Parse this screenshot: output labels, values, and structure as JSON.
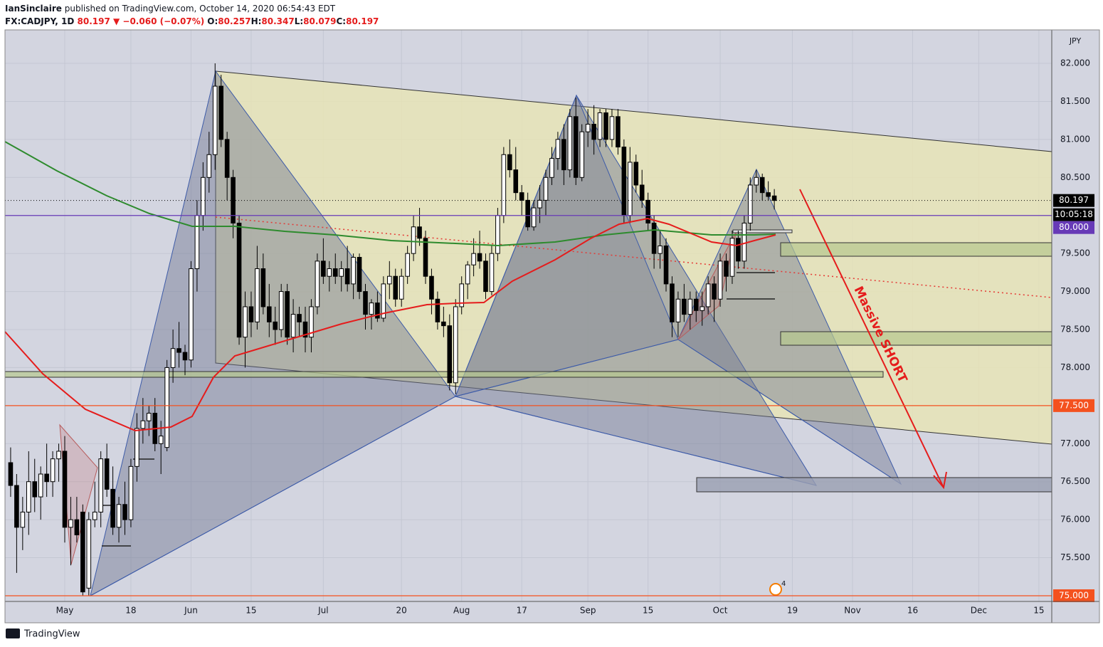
{
  "chart_data": {
    "type": "candlestick",
    "publisher": "IanSinclaire",
    "published_line": "published on TradingView.com, October 14, 2020 06:54:43 EDT",
    "symbol": "FX:CADJPY, 1D",
    "last": "80.197",
    "change": "▼ −0.060 (−0.07%)",
    "ohlc_labels": [
      {
        "key": "O:",
        "value": "80.257"
      },
      {
        "key": "H:",
        "value": "80.347"
      },
      {
        "key": "L:",
        "value": "80.079"
      },
      {
        "key": "C:",
        "value": "80.197"
      }
    ],
    "currency": "JPY",
    "annotation": "Massive SHORT",
    "marker_count": "4",
    "footer": "TradingView",
    "xlim": [
      -9.94,
      164.14
    ],
    "ylim": [
      74.925,
      82.44
    ],
    "xticks": [
      {
        "value": 0,
        "label": "May"
      },
      {
        "value": 11,
        "label": "18"
      },
      {
        "value": 21,
        "label": "Jun"
      },
      {
        "value": 31,
        "label": "15"
      },
      {
        "value": 43,
        "label": "Jul"
      },
      {
        "value": 56,
        "label": "20"
      },
      {
        "value": 66,
        "label": "Aug"
      },
      {
        "value": 76,
        "label": "17"
      },
      {
        "value": 87,
        "label": "Sep"
      },
      {
        "value": 97,
        "label": "15"
      },
      {
        "value": 109,
        "label": "Oct"
      },
      {
        "value": 121,
        "label": "19"
      },
      {
        "value": 131,
        "label": "Nov"
      },
      {
        "value": 141,
        "label": "16"
      },
      {
        "value": 152,
        "label": "Dec"
      },
      {
        "value": 162,
        "label": "15"
      }
    ],
    "yticks": [
      {
        "value": 75.5,
        "label": "75.500"
      },
      {
        "value": 76,
        "label": "76.000"
      },
      {
        "value": 76.5,
        "label": "76.500"
      },
      {
        "value": 77,
        "label": "77.000"
      },
      {
        "value": 78,
        "label": "78.000"
      },
      {
        "value": 78.5,
        "label": "78.500"
      },
      {
        "value": 79,
        "label": "79.000"
      },
      {
        "value": 79.5,
        "label": "79.500"
      },
      {
        "value": 80.5,
        "label": "80.500"
      },
      {
        "value": 81,
        "label": "81.000"
      },
      {
        "value": 81.5,
        "label": "81.500"
      },
      {
        "value": 82,
        "label": "82.000"
      }
    ],
    "grid": true,
    "up_color": "#ffffff",
    "down_color": "#000000",
    "last_price": {
      "value": 80.197,
      "label": "80.197"
    },
    "countdown": "10:05:18",
    "levels": [
      {
        "value": 80,
        "label": "80.000",
        "color": "#673ab7"
      },
      {
        "value": 77.5,
        "label": "77.500",
        "color": "#f4511e"
      },
      {
        "value": 75,
        "label": "75.000",
        "color": "#f4511e"
      }
    ],
    "x": [
      -9,
      -8,
      -7,
      -6,
      -5,
      -4,
      -3,
      -2,
      -1,
      0,
      1,
      2,
      3,
      4,
      5,
      6,
      7,
      8,
      9,
      10,
      11,
      12,
      13,
      14,
      15,
      16,
      17,
      18,
      19,
      20,
      21,
      22,
      23,
      24,
      25,
      26,
      27,
      28,
      29,
      30,
      31,
      32,
      33,
      34,
      35,
      36,
      37,
      38,
      39,
      40,
      41,
      42,
      43,
      44,
      45,
      46,
      47,
      48,
      49,
      50,
      51,
      52,
      53,
      54,
      55,
      56,
      57,
      58,
      59,
      60,
      61,
      62,
      63,
      64,
      65,
      66,
      67,
      68,
      69,
      70,
      71,
      72,
      73,
      74,
      75,
      76,
      77,
      78,
      79,
      80,
      81,
      82,
      83,
      84,
      85,
      86,
      87,
      88,
      89,
      90,
      91,
      92,
      93,
      94,
      95,
      96,
      97,
      98,
      99,
      100,
      101,
      102,
      103,
      104,
      105,
      106,
      107,
      108,
      109,
      110,
      111,
      112,
      113,
      114,
      115,
      116,
      117,
      118
    ],
    "open": [
      76.75,
      76.45,
      75.9,
      76.1,
      76.5,
      76.3,
      76.6,
      76.5,
      76.8,
      76.9,
      75.9,
      76.0,
      76.1,
      75.1,
      76.0,
      76.1,
      76.8,
      76.4,
      75.9,
      76.2,
      76.0,
      76.7,
      77.2,
      77.3,
      77.4,
      77.0,
      76.95,
      78.0,
      78.25,
      78.2,
      78.1,
      79.3,
      80.0,
      80.5,
      80.8,
      81.7,
      81.0,
      80.5,
      79.9,
      78.4,
      78.8,
      78.6,
      79.3,
      78.8,
      78.6,
      78.5,
      79.0,
      78.4,
      78.7,
      78.6,
      78.4,
      78.8,
      79.4,
      79.2,
      79.3,
      79.2,
      79.3,
      79.1,
      79.45,
      79.0,
      78.7,
      78.85,
      78.65,
      79.1,
      79.2,
      78.9,
      79.2,
      79.5,
      79.85,
      79.7,
      79.2,
      78.9,
      78.6,
      78.55,
      77.8,
      78.8,
      79.1,
      79.35,
      79.5,
      79.4,
      79.0,
      79.5,
      80.0,
      80.8,
      80.6,
      80.3,
      80.2,
      79.85,
      80.1,
      80.2,
      80.5,
      80.75,
      81.0,
      80.6,
      81.3,
      80.5,
      81.1,
      81.2,
      81.0,
      81.35,
      81.0,
      81.3,
      80.9,
      80.0,
      80.7,
      80.4,
      80.2,
      79.9,
      79.5,
      79.6,
      79.1,
      78.6,
      78.9,
      78.7,
      78.9,
      78.75,
      78.8,
      79.1,
      78.9,
      79.4,
      79.2,
      79.7,
      79.4,
      79.9,
      80.4,
      80.5,
      80.3,
      80.257
    ],
    "high": [
      76.95,
      76.6,
      76.3,
      76.9,
      76.8,
      76.7,
      77.0,
      76.9,
      77.0,
      77.1,
      76.3,
      76.3,
      76.2,
      76.1,
      76.5,
      76.9,
      77.0,
      76.7,
      76.3,
      76.5,
      76.8,
      77.4,
      77.6,
      77.5,
      77.6,
      77.3,
      78.1,
      78.5,
      78.6,
      78.3,
      79.4,
      80.2,
      80.7,
      81.1,
      82.0,
      81.85,
      81.1,
      80.6,
      80.0,
      79.0,
      79.0,
      79.6,
      79.5,
      79.1,
      78.8,
      79.1,
      79.1,
      78.9,
      78.8,
      78.8,
      78.9,
      79.5,
      79.7,
      79.4,
      79.5,
      79.4,
      79.6,
      79.5,
      79.5,
      79.1,
      78.9,
      79.0,
      79.2,
      79.4,
      79.3,
      79.3,
      79.6,
      80.0,
      80.1,
      79.8,
      79.3,
      79.0,
      78.8,
      78.7,
      78.9,
      79.2,
      79.4,
      79.7,
      79.8,
      79.5,
      79.6,
      80.1,
      80.9,
      81.0,
      80.9,
      80.4,
      80.3,
      80.2,
      80.4,
      80.6,
      80.9,
      81.1,
      81.2,
      81.4,
      81.55,
      81.2,
      81.4,
      81.45,
      81.4,
      81.4,
      81.4,
      81.4,
      81.0,
      80.9,
      80.8,
      80.6,
      80.3,
      80.0,
      79.8,
      79.7,
      79.2,
      79.0,
      79.1,
      79.0,
      79.0,
      79.0,
      79.2,
      79.2,
      79.5,
      79.5,
      79.8,
      79.8,
      80.0,
      80.5,
      80.6,
      80.55,
      80.45,
      80.347
    ],
    "low": [
      76.3,
      75.3,
      75.6,
      75.8,
      76.1,
      76.0,
      76.3,
      76.3,
      76.5,
      75.7,
      75.4,
      75.7,
      75.0,
      75.0,
      75.9,
      75.9,
      76.3,
      75.8,
      75.7,
      75.8,
      75.9,
      76.5,
      77.0,
      77.1,
      76.9,
      76.6,
      76.9,
      77.8,
      78.0,
      77.9,
      78.0,
      79.0,
      79.8,
      80.3,
      80.6,
      80.9,
      80.2,
      79.7,
      78.3,
      78.0,
      78.4,
      78.5,
      78.7,
      78.4,
      78.3,
      78.4,
      78.3,
      78.2,
      78.4,
      78.2,
      78.2,
      78.7,
      79.1,
      79.0,
      79.1,
      79.0,
      79.0,
      78.9,
      78.9,
      78.5,
      78.5,
      78.6,
      78.6,
      78.9,
      78.8,
      78.8,
      79.1,
      79.4,
      79.6,
      79.1,
      78.7,
      78.5,
      78.4,
      77.7,
      77.65,
      78.7,
      78.9,
      79.2,
      79.3,
      78.9,
      78.95,
      79.4,
      79.9,
      80.5,
      80.2,
      80.0,
      79.8,
      79.8,
      79.9,
      80.0,
      80.4,
      80.6,
      80.4,
      80.5,
      80.4,
      80.45,
      80.9,
      80.8,
      80.9,
      80.9,
      80.9,
      80.8,
      79.9,
      79.9,
      80.3,
      80.1,
      79.8,
      79.3,
      79.3,
      79.0,
      78.4,
      78.4,
      78.6,
      78.5,
      78.6,
      78.55,
      78.7,
      78.6,
      78.8,
      79.0,
      79.1,
      79.3,
      79.3,
      79.8,
      80.3,
      80.2,
      80.2,
      80.079
    ],
    "close": [
      76.45,
      75.9,
      76.1,
      76.5,
      76.3,
      76.6,
      76.5,
      76.8,
      76.9,
      75.9,
      76.0,
      75.8,
      75.05,
      76.0,
      76.1,
      76.8,
      76.4,
      75.9,
      76.2,
      76.0,
      76.7,
      77.2,
      77.3,
      77.4,
      77.0,
      77.1,
      78.0,
      78.25,
      78.2,
      78.1,
      79.3,
      80.0,
      80.5,
      80.8,
      81.7,
      81.0,
      80.5,
      79.9,
      78.4,
      78.8,
      78.6,
      79.3,
      78.8,
      78.6,
      78.5,
      79.0,
      78.4,
      78.7,
      78.6,
      78.4,
      78.8,
      79.4,
      79.2,
      79.3,
      79.2,
      79.3,
      79.1,
      79.45,
      79.0,
      78.7,
      78.85,
      78.65,
      79.1,
      79.2,
      78.9,
      79.2,
      79.5,
      79.85,
      79.7,
      79.2,
      78.9,
      78.6,
      78.55,
      77.8,
      78.8,
      79.1,
      79.35,
      79.5,
      79.4,
      79.0,
      79.5,
      80.0,
      80.8,
      80.6,
      80.3,
      80.2,
      79.85,
      80.1,
      80.2,
      80.5,
      80.75,
      81.0,
      80.6,
      81.3,
      80.5,
      81.1,
      81.2,
      81.0,
      81.35,
      81.0,
      81.3,
      80.9,
      80.0,
      80.7,
      80.4,
      80.2,
      79.9,
      79.5,
      79.6,
      79.1,
      78.6,
      78.9,
      78.7,
      78.9,
      78.75,
      78.8,
      79.1,
      78.9,
      79.4,
      79.2,
      79.7,
      79.4,
      79.9,
      80.4,
      80.5,
      80.3,
      80.25,
      80.197
    ]
  }
}
